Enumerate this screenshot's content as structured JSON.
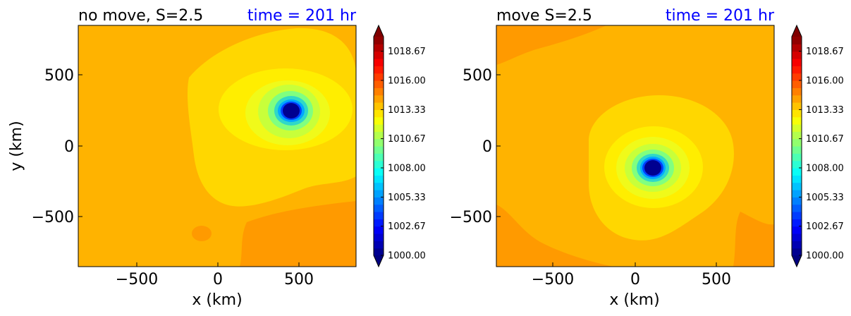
{
  "colors": {
    "time_label": "#0000ff",
    "text": "#000000",
    "background_level": "#ffb300"
  },
  "chart_data": [
    {
      "type": "heatmap",
      "title": "no move, S=2.5",
      "title_right": "time = 201 hr",
      "xlabel": "x (km)",
      "ylabel": "y (km)",
      "xlim": [
        -850,
        850
      ],
      "ylim": [
        -850,
        850
      ],
      "xticks": [
        "−500",
        "0",
        "500"
      ],
      "yticks": [
        "500",
        "0",
        "−500"
      ],
      "xtick_values": [
        -500,
        0,
        500
      ],
      "ytick_values": [
        500,
        0,
        -500
      ],
      "vortex_center_km": [
        450,
        250
      ],
      "center_pressure": 1000.0,
      "background_pressure": 1014.5,
      "colorbar": {
        "min": 1000.0,
        "max": 1020.0,
        "tick_labels": [
          "1018.67",
          "1016.00",
          "1013.33",
          "1010.67",
          "1008.00",
          "1005.33",
          "1002.67",
          "1000.00"
        ],
        "tick_values": [
          1018.67,
          1016.0,
          1013.33,
          1010.67,
          1008.0,
          1005.33,
          1002.67,
          1000.0
        ]
      }
    },
    {
      "type": "heatmap",
      "title": "move S=2.5",
      "title_right": "time = 201 hr",
      "xlabel": "x (km)",
      "ylabel": "",
      "xlim": [
        -850,
        850
      ],
      "ylim": [
        -850,
        850
      ],
      "xticks": [
        "−500",
        "0",
        "500"
      ],
      "yticks": [
        "500",
        "0",
        "−500"
      ],
      "xtick_values": [
        -500,
        0,
        500
      ],
      "ytick_values": [
        500,
        0,
        -500
      ],
      "vortex_center_km": [
        100,
        -150
      ],
      "center_pressure": 1000.0,
      "background_pressure": 1014.5,
      "colorbar": {
        "min": 1000.0,
        "max": 1020.0,
        "tick_labels": [
          "1018.67",
          "1016.00",
          "1013.33",
          "1010.67",
          "1008.00",
          "1005.33",
          "1002.67",
          "1000.00"
        ],
        "tick_values": [
          1018.67,
          1016.0,
          1013.33,
          1010.67,
          1008.0,
          1005.33,
          1002.67,
          1000.0
        ]
      }
    }
  ]
}
